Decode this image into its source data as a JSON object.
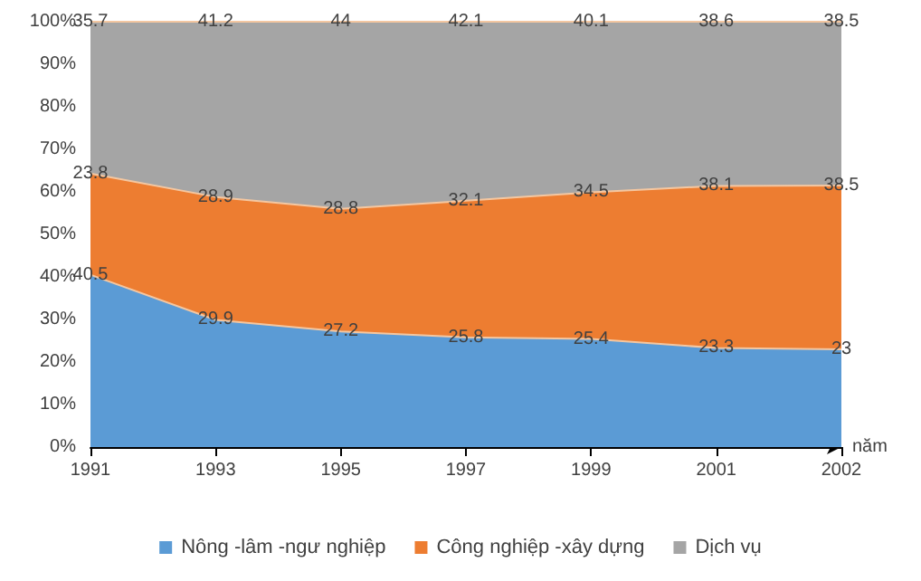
{
  "chart_data": {
    "type": "area",
    "stacked": true,
    "xlabel": "năm",
    "categories": [
      "1991",
      "1993",
      "1995",
      "1997",
      "1999",
      "2001",
      "2002"
    ],
    "series": [
      {
        "name": "Nông -lâm -ngư nghiệp",
        "color": "#5b9bd5",
        "values": [
          40.5,
          29.9,
          27.2,
          25.8,
          25.4,
          23.3,
          23
        ]
      },
      {
        "name": "Công nghiệp -xây dựng",
        "color": "#ed7d31",
        "values": [
          23.8,
          28.9,
          28.8,
          32.1,
          34.5,
          38.1,
          38.5
        ]
      },
      {
        "name": "Dịch vụ",
        "color": "#a5a5a5",
        "values": [
          35.7,
          41.2,
          44,
          42.1,
          40.1,
          38.6,
          38.5
        ]
      }
    ],
    "ylim": [
      0,
      100
    ],
    "yticks": [
      {
        "value": 0,
        "label": "0%"
      },
      {
        "value": 10,
        "label": "10%"
      },
      {
        "value": 20,
        "label": "20%"
      },
      {
        "value": 30,
        "label": "30%"
      },
      {
        "value": 40,
        "label": "40%"
      },
      {
        "value": 50,
        "label": "50%"
      },
      {
        "value": 60,
        "label": "60%"
      },
      {
        "value": 70,
        "label": "70%"
      },
      {
        "value": 80,
        "label": "80%"
      },
      {
        "value": 90,
        "label": "90%"
      },
      {
        "value": 100,
        "label": "100%"
      }
    ],
    "data_labels": true,
    "legend": "bottom",
    "grid": false
  }
}
